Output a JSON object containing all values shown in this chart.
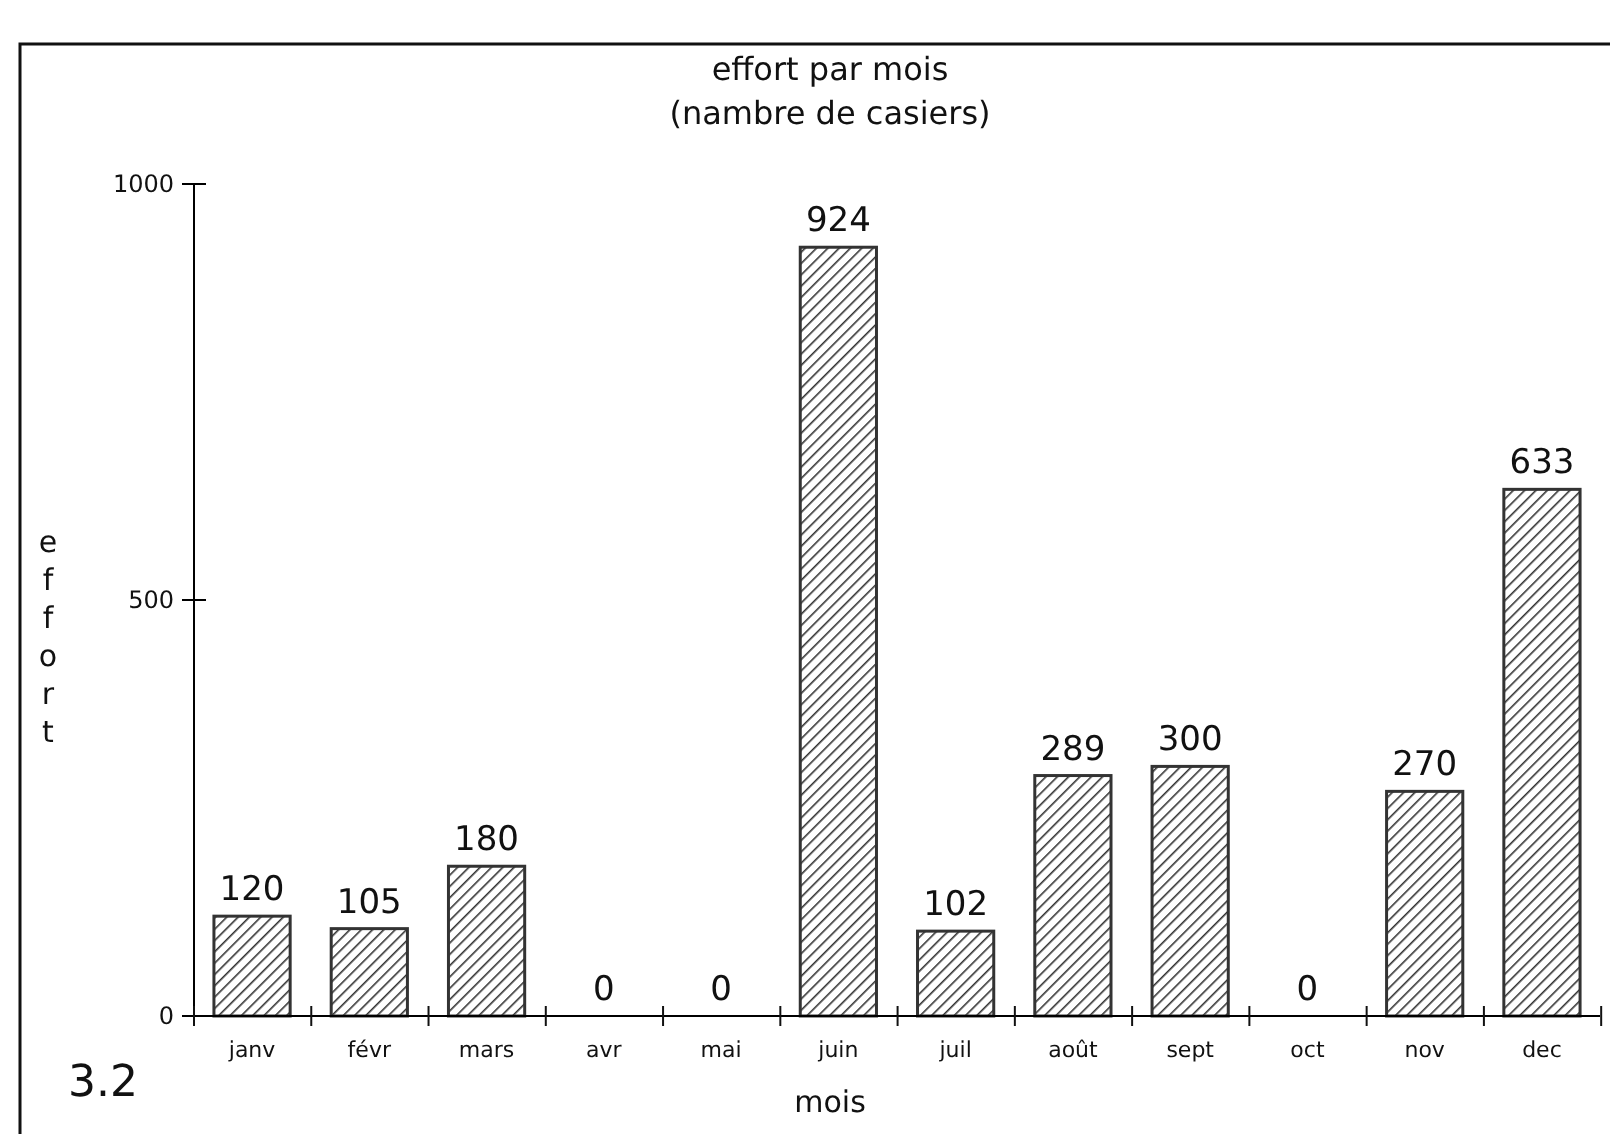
{
  "chart_data": {
    "type": "bar",
    "title": "effort par mois",
    "subtitle": "(nambre de casiers)",
    "xlabel": "mois",
    "ylabel": "effort",
    "categories": [
      "janv",
      "févr",
      "mars",
      "avr",
      "mai",
      "juin",
      "juil",
      "août",
      "sept",
      "oct",
      "nov",
      "dec"
    ],
    "values": [
      120,
      105,
      180,
      0,
      0,
      924,
      102,
      289,
      300,
      0,
      270,
      633
    ],
    "color": "#333333",
    "ylim": [
      0,
      1000
    ],
    "yticks": [
      0,
      500,
      1000
    ],
    "grid": false,
    "data_labels": true,
    "annotations": [
      "3.2"
    ]
  }
}
